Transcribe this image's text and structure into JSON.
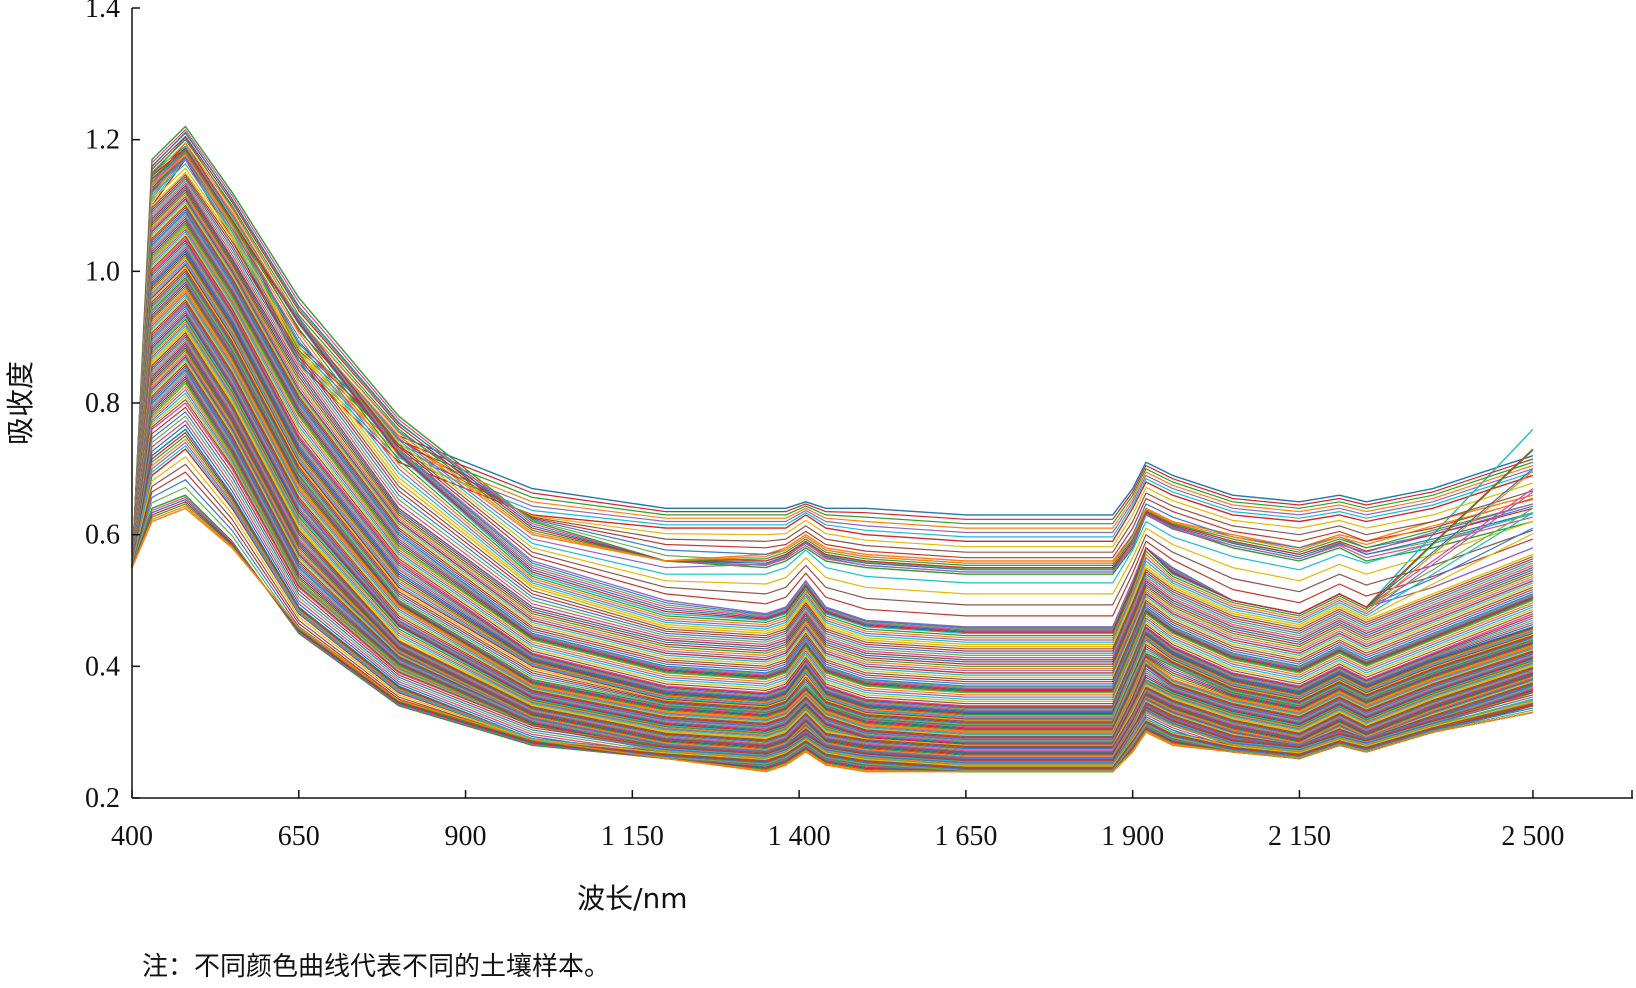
{
  "chart_data": {
    "type": "line",
    "xlabel": "波长/nm",
    "ylabel": "吸收度",
    "x_ticks": [
      400,
      650,
      900,
      1150,
      1400,
      1650,
      1900,
      2150,
      2500
    ],
    "x_tick_labels": [
      "400",
      "650",
      "900",
      "1 150",
      "1 400",
      "1 650",
      "1 900",
      "2 150",
      "2 500"
    ],
    "xlim": [
      400,
      2650
    ],
    "y_ticks": [
      0.2,
      0.4,
      0.6,
      0.8,
      1.0,
      1.2,
      1.4
    ],
    "y_tick_labels": [
      "0.2",
      "0.4",
      "0.6",
      "0.8",
      "1.0",
      "1.2",
      "1.4"
    ],
    "ylim": [
      0.2,
      1.4
    ],
    "grid": false,
    "x": [
      400,
      430,
      480,
      550,
      650,
      800,
      1000,
      1200,
      1350,
      1380,
      1410,
      1440,
      1500,
      1650,
      1870,
      1900,
      1920,
      1960,
      2050,
      2150,
      2210,
      2250,
      2350,
      2500
    ],
    "series_colors": [
      "#1f77b4",
      "#d62728",
      "#2ca02c",
      "#ff7f0e",
      "#9467bd",
      "#17becf",
      "#e6b800",
      "#8c564b",
      "#c0392b",
      "#3a7bd5",
      "#6ab04c",
      "#e84393"
    ],
    "series": [
      {
        "values": [
          0.55,
          1.13,
          1.19,
          1.08,
          0.89,
          0.75,
          0.67,
          0.64,
          0.64,
          0.64,
          0.65,
          0.64,
          0.64,
          0.63,
          0.63,
          0.67,
          0.71,
          0.69,
          0.66,
          0.65,
          0.66,
          0.65,
          0.67,
          0.72
        ]
      },
      {
        "values": [
          0.55,
          1.1,
          1.17,
          1.05,
          0.86,
          0.71,
          0.63,
          0.61,
          0.61,
          0.61,
          0.63,
          0.61,
          0.6,
          0.59,
          0.59,
          0.64,
          0.68,
          0.66,
          0.63,
          0.62,
          0.63,
          0.62,
          0.64,
          0.69
        ]
      },
      {
        "values": [
          0.55,
          1.17,
          1.22,
          1.12,
          0.96,
          0.78,
          0.62,
          0.56,
          0.55,
          0.56,
          0.58,
          0.56,
          0.55,
          0.54,
          0.54,
          0.58,
          0.63,
          0.61,
          0.58,
          0.56,
          0.58,
          0.56,
          0.58,
          0.62
        ]
      },
      {
        "values": [
          0.55,
          1.14,
          1.19,
          1.09,
          0.92,
          0.75,
          0.6,
          0.56,
          0.57,
          0.58,
          0.6,
          0.58,
          0.57,
          0.56,
          0.56,
          0.6,
          0.64,
          0.62,
          0.6,
          0.58,
          0.6,
          0.59,
          0.62,
          0.66
        ]
      },
      {
        "values": [
          0.55,
          1.12,
          1.17,
          1.07,
          0.93,
          0.73,
          0.56,
          0.5,
          0.48,
          0.49,
          0.53,
          0.49,
          0.47,
          0.46,
          0.46,
          0.53,
          0.58,
          0.55,
          0.5,
          0.48,
          0.51,
          0.49,
          0.52,
          0.58
        ]
      },
      {
        "values": [
          0.55,
          1.15,
          1.19,
          1.08,
          0.92,
          0.72,
          0.54,
          0.48,
          0.47,
          0.48,
          0.52,
          0.48,
          0.46,
          0.45,
          0.45,
          0.52,
          0.58,
          0.54,
          0.5,
          0.48,
          0.51,
          0.49,
          0.6,
          0.76
        ]
      },
      {
        "values": [
          0.55,
          1.1,
          1.15,
          1.05,
          0.88,
          0.68,
          0.52,
          0.46,
          0.45,
          0.46,
          0.5,
          0.46,
          0.44,
          0.43,
          0.43,
          0.5,
          0.55,
          0.52,
          0.48,
          0.46,
          0.49,
          0.47,
          0.51,
          0.57
        ]
      },
      {
        "values": [
          0.55,
          1.08,
          1.13,
          1.02,
          0.85,
          0.64,
          0.49,
          0.44,
          0.43,
          0.44,
          0.48,
          0.44,
          0.42,
          0.41,
          0.41,
          0.48,
          0.53,
          0.5,
          0.46,
          0.44,
          0.47,
          0.45,
          0.49,
          0.55
        ]
      },
      {
        "values": [
          0.55,
          1.06,
          1.11,
          1.0,
          0.82,
          0.62,
          0.47,
          0.42,
          0.41,
          0.42,
          0.46,
          0.42,
          0.4,
          0.39,
          0.39,
          0.46,
          0.51,
          0.48,
          0.44,
          0.42,
          0.45,
          0.43,
          0.47,
          0.53
        ]
      },
      {
        "values": [
          0.55,
          1.04,
          1.09,
          0.98,
          0.8,
          0.6,
          0.45,
          0.4,
          0.39,
          0.4,
          0.44,
          0.4,
          0.38,
          0.37,
          0.37,
          0.44,
          0.49,
          0.46,
          0.42,
          0.4,
          0.43,
          0.41,
          0.45,
          0.51
        ]
      },
      {
        "values": [
          0.55,
          1.02,
          1.07,
          0.96,
          0.78,
          0.58,
          0.44,
          0.39,
          0.38,
          0.39,
          0.43,
          0.39,
          0.37,
          0.36,
          0.36,
          0.43,
          0.48,
          0.45,
          0.41,
          0.39,
          0.42,
          0.4,
          0.44,
          0.5
        ]
      },
      {
        "values": [
          0.55,
          1.0,
          1.05,
          0.94,
          0.75,
          0.56,
          0.42,
          0.37,
          0.36,
          0.37,
          0.41,
          0.37,
          0.35,
          0.34,
          0.34,
          0.41,
          0.46,
          0.43,
          0.39,
          0.37,
          0.4,
          0.38,
          0.42,
          0.48
        ]
      },
      {
        "values": [
          0.55,
          0.98,
          1.03,
          0.92,
          0.73,
          0.54,
          0.41,
          0.36,
          0.35,
          0.36,
          0.4,
          0.36,
          0.34,
          0.33,
          0.33,
          0.4,
          0.45,
          0.42,
          0.38,
          0.36,
          0.39,
          0.37,
          0.41,
          0.46
        ]
      },
      {
        "values": [
          0.55,
          0.96,
          1.01,
          0.9,
          0.71,
          0.52,
          0.4,
          0.35,
          0.34,
          0.35,
          0.39,
          0.35,
          0.33,
          0.32,
          0.32,
          0.39,
          0.44,
          0.41,
          0.37,
          0.35,
          0.38,
          0.36,
          0.4,
          0.45
        ]
      },
      {
        "values": [
          0.55,
          0.94,
          0.99,
          0.88,
          0.69,
          0.5,
          0.38,
          0.34,
          0.33,
          0.34,
          0.37,
          0.34,
          0.32,
          0.31,
          0.31,
          0.38,
          0.42,
          0.4,
          0.36,
          0.34,
          0.37,
          0.35,
          0.39,
          0.44
        ]
      },
      {
        "values": [
          0.55,
          0.92,
          0.97,
          0.86,
          0.67,
          0.49,
          0.37,
          0.33,
          0.32,
          0.33,
          0.36,
          0.33,
          0.31,
          0.3,
          0.3,
          0.36,
          0.41,
          0.38,
          0.35,
          0.33,
          0.36,
          0.34,
          0.38,
          0.43
        ]
      },
      {
        "values": [
          0.55,
          0.9,
          0.95,
          0.84,
          0.65,
          0.47,
          0.36,
          0.32,
          0.31,
          0.32,
          0.35,
          0.32,
          0.3,
          0.29,
          0.29,
          0.35,
          0.4,
          0.37,
          0.34,
          0.32,
          0.35,
          0.33,
          0.37,
          0.42
        ]
      },
      {
        "values": [
          0.55,
          0.88,
          0.93,
          0.82,
          0.63,
          0.46,
          0.35,
          0.31,
          0.3,
          0.31,
          0.34,
          0.31,
          0.29,
          0.28,
          0.28,
          0.34,
          0.38,
          0.36,
          0.33,
          0.31,
          0.34,
          0.32,
          0.36,
          0.41
        ]
      },
      {
        "values": [
          0.55,
          0.86,
          0.91,
          0.8,
          0.61,
          0.44,
          0.34,
          0.3,
          0.29,
          0.3,
          0.33,
          0.3,
          0.29,
          0.28,
          0.28,
          0.33,
          0.37,
          0.35,
          0.32,
          0.3,
          0.33,
          0.31,
          0.35,
          0.4
        ]
      },
      {
        "values": [
          0.55,
          0.84,
          0.89,
          0.78,
          0.59,
          0.43,
          0.33,
          0.29,
          0.28,
          0.29,
          0.32,
          0.29,
          0.28,
          0.27,
          0.27,
          0.32,
          0.36,
          0.34,
          0.31,
          0.29,
          0.32,
          0.3,
          0.34,
          0.39
        ]
      },
      {
        "values": [
          0.55,
          0.82,
          0.87,
          0.76,
          0.57,
          0.42,
          0.32,
          0.28,
          0.27,
          0.28,
          0.31,
          0.28,
          0.27,
          0.26,
          0.26,
          0.31,
          0.35,
          0.33,
          0.3,
          0.28,
          0.31,
          0.29,
          0.33,
          0.38
        ]
      },
      {
        "values": [
          0.55,
          0.8,
          0.85,
          0.74,
          0.55,
          0.41,
          0.32,
          0.28,
          0.27,
          0.28,
          0.3,
          0.28,
          0.27,
          0.26,
          0.26,
          0.3,
          0.34,
          0.32,
          0.29,
          0.28,
          0.3,
          0.29,
          0.32,
          0.37
        ]
      },
      {
        "values": [
          0.55,
          0.78,
          0.83,
          0.72,
          0.53,
          0.4,
          0.31,
          0.27,
          0.26,
          0.27,
          0.29,
          0.27,
          0.26,
          0.25,
          0.25,
          0.29,
          0.33,
          0.31,
          0.28,
          0.27,
          0.29,
          0.28,
          0.31,
          0.36
        ]
      },
      {
        "values": [
          0.55,
          0.76,
          0.8,
          0.7,
          0.52,
          0.39,
          0.31,
          0.28,
          0.27,
          0.28,
          0.3,
          0.28,
          0.27,
          0.26,
          0.26,
          0.31,
          0.34,
          0.32,
          0.29,
          0.28,
          0.3,
          0.29,
          0.32,
          0.36
        ]
      },
      {
        "values": [
          0.55,
          0.72,
          0.76,
          0.66,
          0.49,
          0.37,
          0.29,
          0.26,
          0.25,
          0.26,
          0.28,
          0.26,
          0.25,
          0.24,
          0.24,
          0.28,
          0.32,
          0.3,
          0.27,
          0.26,
          0.28,
          0.27,
          0.3,
          0.34
        ]
      },
      {
        "values": [
          0.55,
          0.69,
          0.73,
          0.64,
          0.48,
          0.36,
          0.29,
          0.27,
          0.26,
          0.27,
          0.29,
          0.27,
          0.26,
          0.25,
          0.25,
          0.29,
          0.32,
          0.3,
          0.28,
          0.27,
          0.29,
          0.28,
          0.31,
          0.35
        ]
      },
      {
        "values": [
          0.55,
          0.64,
          0.66,
          0.59,
          0.45,
          0.34,
          0.28,
          0.26,
          0.25,
          0.26,
          0.28,
          0.26,
          0.25,
          0.24,
          0.24,
          0.28,
          0.31,
          0.29,
          0.27,
          0.26,
          0.28,
          0.27,
          0.3,
          0.33
        ]
      },
      {
        "values": [
          0.55,
          0.62,
          0.64,
          0.58,
          0.46,
          0.35,
          0.29,
          0.26,
          0.24,
          0.25,
          0.27,
          0.25,
          0.24,
          0.24,
          0.24,
          0.27,
          0.3,
          0.28,
          0.27,
          0.26,
          0.28,
          0.27,
          0.3,
          0.33
        ]
      }
    ],
    "note": "注：不同颜色曲线代表不同的土壤样本。"
  }
}
